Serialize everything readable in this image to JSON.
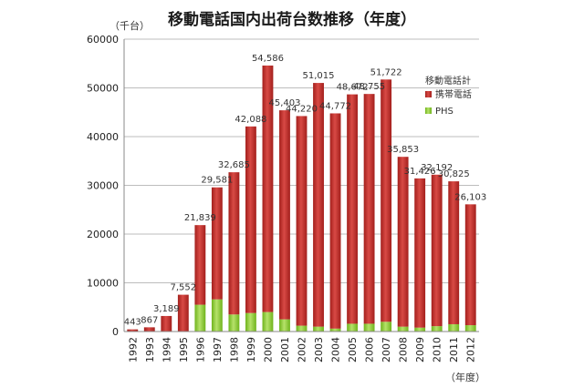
{
  "chart_data": {
    "type": "bar",
    "stacked": true,
    "title": "移動電話国内出荷台数推移（年度）",
    "unit_label": "（千台）",
    "xlabel": "（年度）",
    "ylim": [
      0,
      60000
    ],
    "yticks": [
      "0",
      "10000",
      "20000",
      "30000",
      "40000",
      "50000",
      "60000"
    ],
    "grid": true,
    "legend_title": "移動電話計",
    "legend_position": "right",
    "categories": [
      "1992",
      "1993",
      "1994",
      "1995",
      "1996",
      "1997",
      "1998",
      "1999",
      "2000",
      "2001",
      "2002",
      "2003",
      "2004",
      "2005",
      "2006",
      "2007",
      "2008",
      "2009",
      "2010",
      "2011",
      "2012"
    ],
    "totals": [
      443,
      867,
      3189,
      7552,
      21839,
      29581,
      32685,
      42088,
      54586,
      45403,
      44220,
      51015,
      44772,
      48672,
      48755,
      51722,
      35853,
      31426,
      32192,
      30825,
      26103
    ],
    "total_labels": [
      "443",
      "867",
      "3,189",
      "7,552",
      "21,839",
      "29,581",
      "32,685",
      "42,088",
      "54,586",
      "45,403",
      "44,220",
      "51,015",
      "44,772",
      "48,672",
      "48,755",
      "51,722",
      "35,853",
      "31,426",
      "32,192",
      "30,825",
      "26,103"
    ],
    "series": [
      {
        "name": "携帯電話",
        "color": "#c0302c",
        "values": [
          443,
          867,
          3189,
          7552,
          16339,
          22981,
          29185,
          38288,
          50586,
          42903,
          43020,
          50015,
          44172,
          47072,
          47155,
          49722,
          34853,
          30626,
          31092,
          29325,
          24803
        ]
      },
      {
        "name": "PHS",
        "color": "#8fd02e",
        "values": [
          0,
          0,
          0,
          0,
          5500,
          6600,
          3500,
          3800,
          4000,
          2500,
          1200,
          1000,
          600,
          1600,
          1600,
          2000,
          1000,
          800,
          1100,
          1500,
          1300
        ]
      }
    ]
  }
}
